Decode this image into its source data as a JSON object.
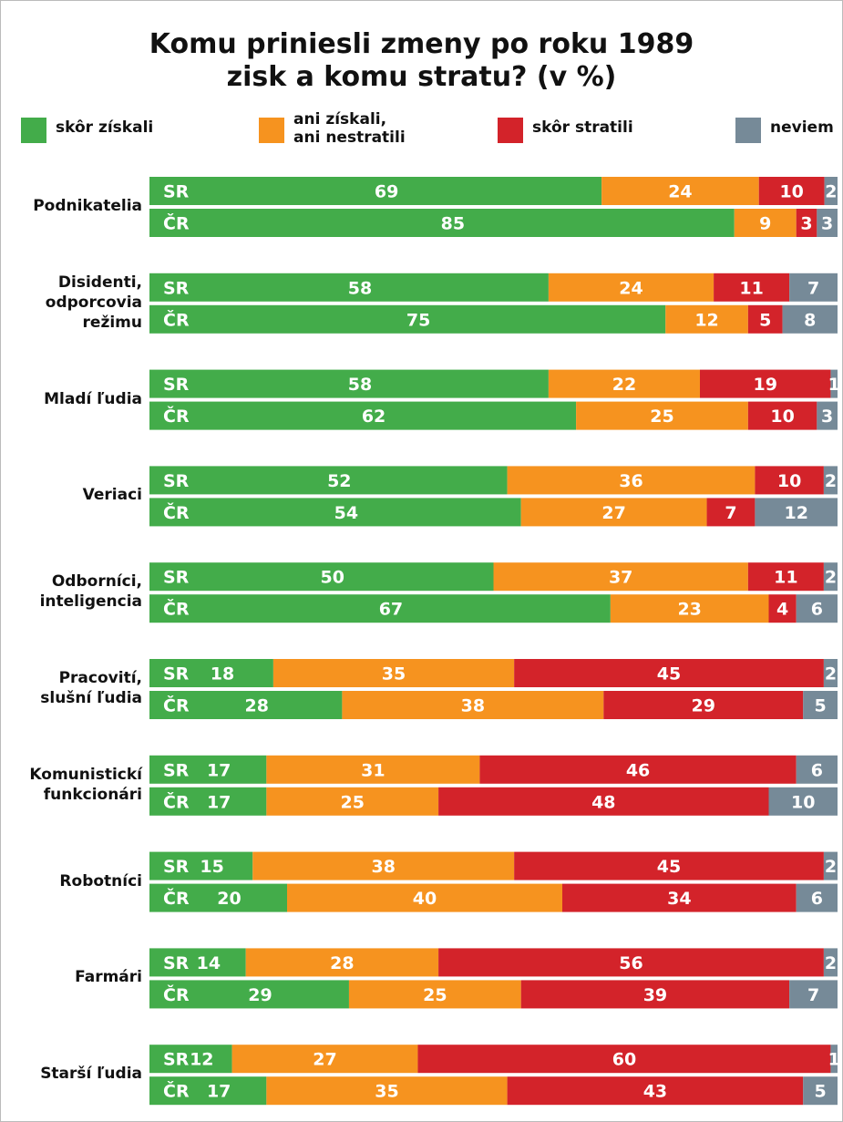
{
  "chart_data": {
    "type": "stacked-bar",
    "title": "Komu priniesli zmeny po roku 1989\nzisk a komu stratu? (v %)",
    "categories": [
      "Podnikatelia",
      "Disidenti,\nodporcovia\nrežimu",
      "Mladí ľudia",
      "Veriaci",
      "Odborníci,\ninteligencia",
      "Pracovití,\nslušní ľudia",
      "Komunistickí\nfunkcionári",
      "Robotníci",
      "Farmári",
      "Starší ľudia"
    ],
    "subcategories": [
      "SR",
      "ČR"
    ],
    "series": [
      {
        "name": "skôr získali",
        "color": "#43ac4a",
        "values": [
          [
            69,
            85
          ],
          [
            58,
            75
          ],
          [
            58,
            62
          ],
          [
            52,
            54
          ],
          [
            50,
            67
          ],
          [
            18,
            28
          ],
          [
            17,
            17
          ],
          [
            15,
            20
          ],
          [
            14,
            29
          ],
          [
            12,
            17
          ]
        ]
      },
      {
        "name": "ani získali,\nani nestratili",
        "color": "#f6931f",
        "values": [
          [
            24,
            9
          ],
          [
            24,
            12
          ],
          [
            22,
            25
          ],
          [
            36,
            27
          ],
          [
            37,
            23
          ],
          [
            35,
            38
          ],
          [
            31,
            25
          ],
          [
            38,
            40
          ],
          [
            28,
            25
          ],
          [
            27,
            35
          ]
        ]
      },
      {
        "name": "skôr stratili",
        "color": "#d3232a",
        "values": [
          [
            10,
            3
          ],
          [
            11,
            5
          ],
          [
            19,
            10
          ],
          [
            10,
            7
          ],
          [
            11,
            4
          ],
          [
            45,
            29
          ],
          [
            46,
            48
          ],
          [
            45,
            34
          ],
          [
            56,
            39
          ],
          [
            60,
            43
          ]
        ]
      },
      {
        "name": "neviem",
        "color": "#768a98",
        "values": [
          [
            2,
            3
          ],
          [
            7,
            8
          ],
          [
            1,
            3
          ],
          [
            2,
            12
          ],
          [
            2,
            6
          ],
          [
            2,
            5
          ],
          [
            6,
            10
          ],
          [
            2,
            6
          ],
          [
            2,
            7
          ],
          [
            1,
            5
          ]
        ]
      }
    ]
  }
}
